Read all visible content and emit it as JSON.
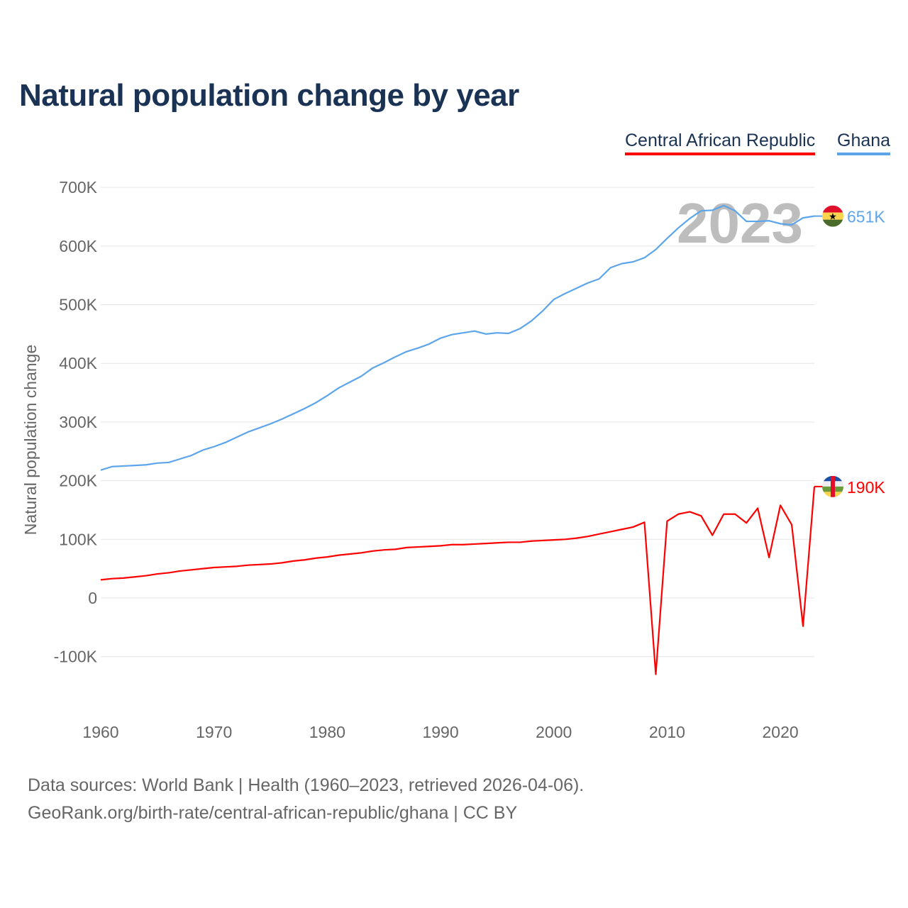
{
  "title": "Natural population change by year",
  "legend": [
    "Central African Republic",
    "Ghana"
  ],
  "footer": {
    "line1": "Data sources: World Bank | Health (1960–2023, retrieved 2026-04-06).",
    "line2": "GeoRank.org/birth-rate/central-african-republic/ghana | CC BY"
  },
  "chart_data": {
    "type": "line",
    "title": "Natural population change by year",
    "xlabel": "",
    "ylabel": "Natural population change",
    "year_watermark": "2023",
    "xlim": [
      1960,
      2023
    ],
    "ylim": [
      -100000,
      700000
    ],
    "x_ticks": [
      1960,
      1970,
      1980,
      1990,
      2000,
      2010,
      2020
    ],
    "y_ticks": [
      -100000,
      0,
      100000,
      200000,
      300000,
      400000,
      500000,
      600000,
      700000
    ],
    "y_tick_labels": [
      "-100K",
      "0",
      "100K",
      "200K",
      "300K",
      "400K",
      "500K",
      "600K",
      "700K"
    ],
    "x": [
      1960,
      1961,
      1962,
      1963,
      1964,
      1965,
      1966,
      1967,
      1968,
      1969,
      1970,
      1971,
      1972,
      1973,
      1974,
      1975,
      1976,
      1977,
      1978,
      1979,
      1980,
      1981,
      1982,
      1983,
      1984,
      1985,
      1986,
      1987,
      1988,
      1989,
      1990,
      1991,
      1992,
      1993,
      1994,
      1995,
      1996,
      1997,
      1998,
      1999,
      2000,
      2001,
      2002,
      2003,
      2004,
      2005,
      2006,
      2007,
      2008,
      2009,
      2010,
      2011,
      2012,
      2013,
      2014,
      2015,
      2016,
      2017,
      2018,
      2019,
      2020,
      2021,
      2022,
      2023
    ],
    "series": [
      {
        "name": "Central African Republic",
        "color": "#ff0000",
        "end_label": "190K",
        "flag": "central-african-republic-flag",
        "values": [
          31000,
          33000,
          34000,
          36000,
          38000,
          41000,
          43000,
          46000,
          48000,
          50000,
          52000,
          53000,
          54000,
          56000,
          57000,
          58000,
          60000,
          63000,
          65000,
          68000,
          70000,
          73000,
          75000,
          77000,
          80000,
          82000,
          83000,
          86000,
          87000,
          88000,
          89000,
          91000,
          91000,
          92000,
          93000,
          94000,
          95000,
          95000,
          97000,
          98000,
          99000,
          100000,
          102000,
          105000,
          109000,
          113000,
          117000,
          121000,
          129000,
          -130000,
          131000,
          143000,
          147000,
          140000,
          107000,
          143000,
          143000,
          128000,
          153000,
          69000,
          158000,
          125000,
          -48000,
          190000
        ]
      },
      {
        "name": "Ghana",
        "color": "#5da5ea",
        "end_label": "651K",
        "flag": "ghana-flag",
        "values": [
          218000,
          224000,
          225000,
          226000,
          227000,
          230000,
          231000,
          237000,
          243000,
          252000,
          258000,
          265000,
          274000,
          283000,
          290000,
          297000,
          305000,
          314000,
          323000,
          333000,
          345000,
          358000,
          368000,
          378000,
          392000,
          401000,
          411000,
          420000,
          426000,
          433000,
          443000,
          449000,
          452000,
          455000,
          450000,
          452000,
          451000,
          459000,
          472000,
          489000,
          509000,
          519000,
          528000,
          537000,
          544000,
          563000,
          570000,
          573000,
          580000,
          594000,
          613000,
          631000,
          647000,
          660000,
          661000,
          669000,
          660000,
          642000,
          642000,
          643000,
          638000,
          636000,
          648000,
          651000
        ]
      }
    ],
    "grid": true,
    "legend_position": "top-right"
  }
}
